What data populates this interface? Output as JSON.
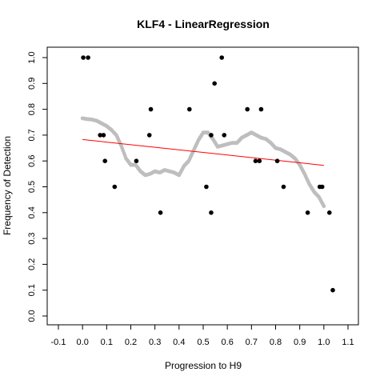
{
  "chart_data": {
    "type": "scatter",
    "title": "KLF4 - LinearRegression",
    "xlabel": "Progression to H9",
    "ylabel": "Frequency of Detection",
    "xlim": [
      -0.1,
      1.1
    ],
    "ylim": [
      0.0,
      1.0
    ],
    "x_ticks": [
      "-0.1",
      "0.0",
      "0.1",
      "0.2",
      "0.3",
      "0.4",
      "0.5",
      "0.6",
      "0.7",
      "0.8",
      "0.9",
      "1.0",
      "1.1"
    ],
    "y_ticks": [
      "0.0",
      "0.1",
      "0.2",
      "0.3",
      "0.4",
      "0.5",
      "0.6",
      "0.7",
      "0.8",
      "0.9",
      "1.0"
    ],
    "grid": false,
    "legend": "none",
    "colors": {
      "observed": "#000000",
      "smoothed": "#bebebe",
      "regression": "#ff0000"
    },
    "series": [
      {
        "kind": "observed",
        "points": [
          {
            "x": 0.003,
            "y": 1.0
          },
          {
            "x": 0.023,
            "y": 1.0
          },
          {
            "x": 0.073,
            "y": 0.7
          },
          {
            "x": 0.087,
            "y": 0.7
          },
          {
            "x": 0.093,
            "y": 0.6
          },
          {
            "x": 0.133,
            "y": 0.5
          },
          {
            "x": 0.223,
            "y": 0.6
          },
          {
            "x": 0.277,
            "y": 0.7
          },
          {
            "x": 0.283,
            "y": 0.8
          },
          {
            "x": 0.323,
            "y": 0.4
          },
          {
            "x": 0.443,
            "y": 0.8
          },
          {
            "x": 0.513,
            "y": 0.5
          },
          {
            "x": 0.533,
            "y": 0.4
          },
          {
            "x": 0.533,
            "y": 0.7
          },
          {
            "x": 0.547,
            "y": 0.9
          },
          {
            "x": 0.577,
            "y": 1.0
          },
          {
            "x": 0.587,
            "y": 0.7
          },
          {
            "x": 0.683,
            "y": 0.8
          },
          {
            "x": 0.717,
            "y": 0.6
          },
          {
            "x": 0.733,
            "y": 0.6
          },
          {
            "x": 0.74,
            "y": 0.8
          },
          {
            "x": 0.807,
            "y": 0.6
          },
          {
            "x": 0.833,
            "y": 0.5
          },
          {
            "x": 0.933,
            "y": 0.4
          },
          {
            "x": 0.983,
            "y": 0.5
          },
          {
            "x": 0.993,
            "y": 0.5
          },
          {
            "x": 1.023,
            "y": 0.4
          },
          {
            "x": 1.037,
            "y": 0.1
          }
        ]
      },
      {
        "kind": "smoothed",
        "points": [
          {
            "x": 0.0,
            "y": 0.765
          },
          {
            "x": 0.02,
            "y": 0.762
          },
          {
            "x": 0.04,
            "y": 0.76
          },
          {
            "x": 0.06,
            "y": 0.755
          },
          {
            "x": 0.08,
            "y": 0.745
          },
          {
            "x": 0.1,
            "y": 0.735
          },
          {
            "x": 0.12,
            "y": 0.72
          },
          {
            "x": 0.14,
            "y": 0.7
          },
          {
            "x": 0.16,
            "y": 0.66
          },
          {
            "x": 0.18,
            "y": 0.61
          },
          {
            "x": 0.2,
            "y": 0.585
          },
          {
            "x": 0.22,
            "y": 0.585
          },
          {
            "x": 0.24,
            "y": 0.56
          },
          {
            "x": 0.26,
            "y": 0.545
          },
          {
            "x": 0.28,
            "y": 0.55
          },
          {
            "x": 0.3,
            "y": 0.56
          },
          {
            "x": 0.32,
            "y": 0.555
          },
          {
            "x": 0.34,
            "y": 0.565
          },
          {
            "x": 0.36,
            "y": 0.56
          },
          {
            "x": 0.38,
            "y": 0.555
          },
          {
            "x": 0.4,
            "y": 0.545
          },
          {
            "x": 0.42,
            "y": 0.58
          },
          {
            "x": 0.44,
            "y": 0.6
          },
          {
            "x": 0.46,
            "y": 0.64
          },
          {
            "x": 0.48,
            "y": 0.68
          },
          {
            "x": 0.5,
            "y": 0.71
          },
          {
            "x": 0.52,
            "y": 0.71
          },
          {
            "x": 0.54,
            "y": 0.685
          },
          {
            "x": 0.56,
            "y": 0.655
          },
          {
            "x": 0.58,
            "y": 0.66
          },
          {
            "x": 0.6,
            "y": 0.665
          },
          {
            "x": 0.62,
            "y": 0.67
          },
          {
            "x": 0.64,
            "y": 0.67
          },
          {
            "x": 0.66,
            "y": 0.69
          },
          {
            "x": 0.68,
            "y": 0.7
          },
          {
            "x": 0.7,
            "y": 0.71
          },
          {
            "x": 0.72,
            "y": 0.7
          },
          {
            "x": 0.74,
            "y": 0.69
          },
          {
            "x": 0.76,
            "y": 0.685
          },
          {
            "x": 0.78,
            "y": 0.67
          },
          {
            "x": 0.8,
            "y": 0.65
          },
          {
            "x": 0.82,
            "y": 0.645
          },
          {
            "x": 0.84,
            "y": 0.635
          },
          {
            "x": 0.86,
            "y": 0.625
          },
          {
            "x": 0.88,
            "y": 0.61
          },
          {
            "x": 0.9,
            "y": 0.585
          },
          {
            "x": 0.92,
            "y": 0.55
          },
          {
            "x": 0.94,
            "y": 0.51
          },
          {
            "x": 0.96,
            "y": 0.48
          },
          {
            "x": 0.98,
            "y": 0.46
          },
          {
            "x": 1.0,
            "y": 0.425
          }
        ]
      },
      {
        "kind": "regression",
        "line": [
          {
            "x": 0.0,
            "y": 0.683
          },
          {
            "x": 1.0,
            "y": 0.583
          }
        ]
      }
    ]
  }
}
